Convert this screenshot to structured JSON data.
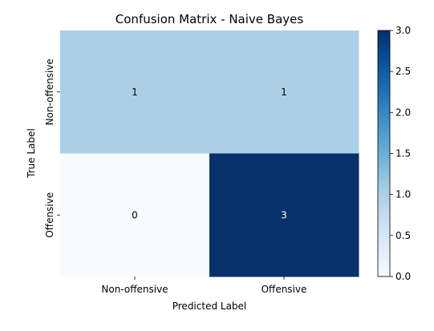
{
  "chart_data": {
    "type": "heatmap",
    "title": "Confusion Matrix - Naive Bayes",
    "xlabel": "Predicted Label",
    "ylabel": "True Label",
    "x_categories": [
      "Non-offensive",
      "Offensive"
    ],
    "y_categories": [
      "Non-offensive",
      "Offensive"
    ],
    "matrix": [
      [
        1,
        1
      ],
      [
        0,
        3
      ]
    ],
    "colormap": "Blues",
    "colorbar": {
      "min": 0.0,
      "max": 3.0,
      "ticks": [
        "0.0",
        "0.5",
        "1.0",
        "1.5",
        "2.0",
        "2.5",
        "3.0"
      ]
    },
    "cell_colors": {
      "0": "#f7fbff",
      "1": "#abd0e6",
      "3": "#08306b"
    },
    "annotation_colors": {
      "light": "#000000",
      "dark": "#ffffff"
    }
  }
}
